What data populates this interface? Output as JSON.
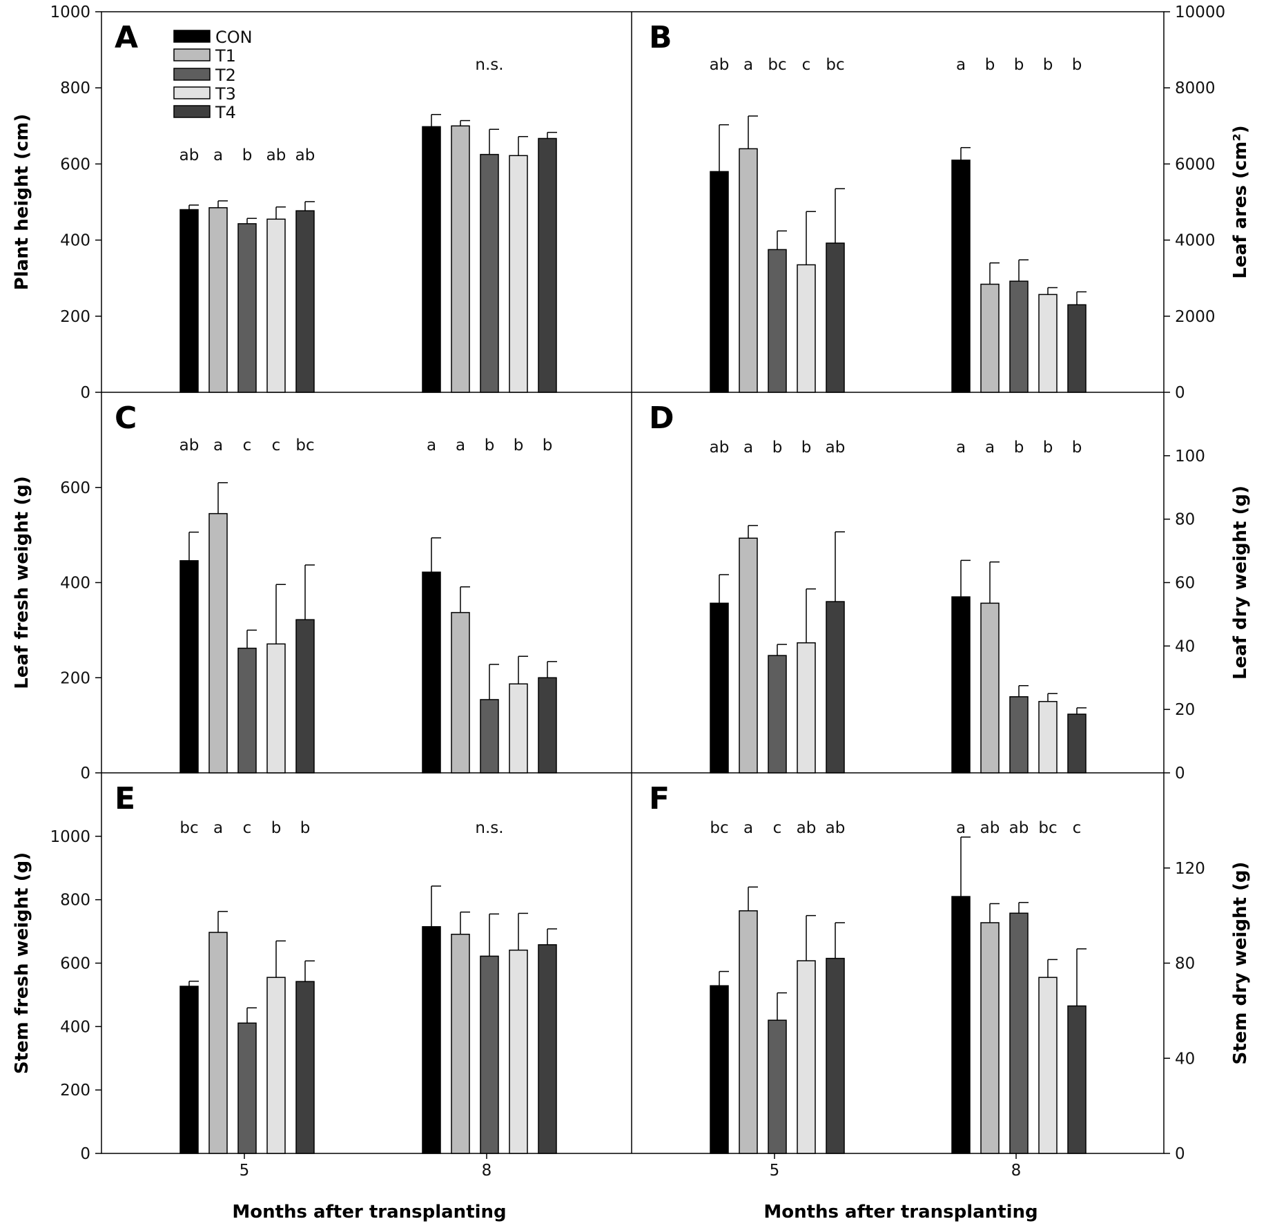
{
  "chart_data": {
    "type": "bar",
    "categories": [
      "5",
      "8"
    ],
    "series_names": [
      "CON",
      "T1",
      "T2",
      "T3",
      "T4"
    ],
    "colors": [
      "#000000",
      "#bcbcbc",
      "#5e5e5e",
      "#e2e2e2",
      "#3f3f3f"
    ],
    "xlabel": "Months after transplanting",
    "panels": [
      {
        "letter": "A",
        "ylabel": "Plant height (cm)",
        "ylim": [
          0,
          1000
        ],
        "yticks": [
          "0",
          "200",
          "400",
          "600",
          "800",
          "1000"
        ],
        "values": [
          [
            480,
            485,
            443,
            455,
            477
          ],
          [
            698,
            700,
            625,
            622,
            667
          ]
        ],
        "errors": [
          [
            12,
            18,
            14,
            32,
            24
          ],
          [
            32,
            14,
            66,
            50,
            16
          ]
        ],
        "letters": [
          [
            "ab",
            "a",
            "b",
            "ab",
            "ab"
          ],
          [
            "n.s."
          ]
        ]
      },
      {
        "letter": "B",
        "ylabel": "Leaf ares (cm²)",
        "ylim": [
          0,
          10000
        ],
        "yticks": [
          "0",
          "2000",
          "4000",
          "6000",
          "8000",
          "10000"
        ],
        "values": [
          [
            5800,
            6400,
            3750,
            3350,
            3920
          ],
          [
            6100,
            2840,
            2920,
            2570,
            2300
          ]
        ],
        "errors": [
          [
            1230,
            860,
            490,
            1400,
            1430
          ],
          [
            330,
            560,
            560,
            180,
            340
          ]
        ],
        "letters": [
          [
            "ab",
            "a",
            "bc",
            "c",
            "bc"
          ],
          [
            "a",
            "b",
            "b",
            "b",
            "b"
          ]
        ]
      },
      {
        "letter": "C",
        "ylabel": "Leaf fresh weight (g)",
        "ylim": [
          0,
          800
        ],
        "yticks": [
          "0",
          "200",
          "400",
          "600"
        ],
        "values": [
          [
            446,
            545,
            262,
            271,
            322
          ],
          [
            422,
            337,
            154,
            187,
            200
          ]
        ],
        "errors": [
          [
            60,
            65,
            38,
            125,
            115
          ],
          [
            72,
            54,
            74,
            58,
            34
          ]
        ],
        "letters": [
          [
            "ab",
            "a",
            "c",
            "c",
            "bc"
          ],
          [
            "a",
            "a",
            "b",
            "b",
            "b"
          ]
        ]
      },
      {
        "letter": "D",
        "ylabel": "Leaf dry weight (g)",
        "ylim": [
          0,
          120
        ],
        "yticks": [
          "0",
          "20",
          "40",
          "60",
          "80",
          "100"
        ],
        "values": [
          [
            53.5,
            74,
            37,
            41,
            54
          ],
          [
            55.5,
            53.5,
            24,
            22.5,
            18.5
          ]
        ],
        "errors": [
          [
            9,
            4,
            3.5,
            17,
            22
          ],
          [
            11.5,
            13,
            3.5,
            2.5,
            2
          ]
        ],
        "letters": [
          [
            "ab",
            "a",
            "b",
            "b",
            "ab"
          ],
          [
            "a",
            "a",
            "b",
            "b",
            "b"
          ]
        ]
      },
      {
        "letter": "E",
        "ylabel": "Stem fresh weight (g)",
        "ylim": [
          0,
          1200
        ],
        "yticks": [
          "0",
          "200",
          "400",
          "600",
          "800",
          "1000"
        ],
        "values": [
          [
            527,
            697,
            411,
            555,
            542
          ],
          [
            715,
            691,
            622,
            641,
            658
          ]
        ],
        "errors": [
          [
            16,
            66,
            48,
            115,
            65
          ],
          [
            128,
            70,
            133,
            116,
            50
          ]
        ],
        "letters": [
          [
            "bc",
            "a",
            "c",
            "b",
            "b"
          ],
          [
            "n.s."
          ]
        ]
      },
      {
        "letter": "F",
        "ylabel": "Stem dry weight (g)",
        "ylim": [
          0,
          160
        ],
        "yticks": [
          "0",
          "40",
          "80",
          "120"
        ],
        "values": [
          [
            70.5,
            102,
            56,
            81,
            82
          ],
          [
            108,
            97,
            101,
            74,
            62
          ]
        ],
        "errors": [
          [
            6,
            10,
            11.5,
            19,
            15
          ],
          [
            25,
            8,
            4.5,
            7.5,
            24
          ]
        ],
        "letters": [
          [
            "bc",
            "a",
            "c",
            "ab",
            "ab"
          ],
          [
            "a",
            "ab",
            "ab",
            "bc",
            "c"
          ]
        ]
      }
    ]
  }
}
